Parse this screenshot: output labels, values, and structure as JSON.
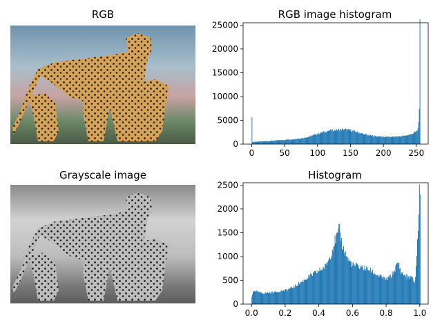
{
  "panels": {
    "rgb_title": "RGB",
    "gray_title": "Grayscale image",
    "hist_rgb_title": "RGB image histogram",
    "hist_gray_title": "Histogram"
  },
  "colors": {
    "bar": "#1f77b4",
    "axis": "#000000",
    "background": "#ffffff"
  },
  "images": {
    "rgb_subject": "cheetah-family-photo",
    "gray_subject": "cheetah-family-photo-grayscale"
  },
  "chart_data": [
    {
      "type": "bar",
      "title": "RGB image histogram",
      "xlabel": "",
      "ylabel": "",
      "xlim": [
        -13,
        268
      ],
      "ylim": [
        0,
        25500
      ],
      "xticks": [
        0,
        50,
        100,
        150,
        200,
        250
      ],
      "yticks": [
        0,
        5000,
        10000,
        15000,
        20000,
        25000
      ],
      "bin_width": 1,
      "grid": false,
      "profile": [
        [
          0,
          6200
        ],
        [
          1,
          400
        ],
        [
          3,
          500
        ],
        [
          10,
          520
        ],
        [
          20,
          600
        ],
        [
          30,
          700
        ],
        [
          40,
          800
        ],
        [
          50,
          900
        ],
        [
          60,
          1000
        ],
        [
          70,
          1150
        ],
        [
          80,
          1350
        ],
        [
          90,
          1700
        ],
        [
          100,
          2200
        ],
        [
          110,
          2600
        ],
        [
          120,
          2900
        ],
        [
          130,
          3000
        ],
        [
          140,
          3100
        ],
        [
          150,
          2900
        ],
        [
          160,
          2500
        ],
        [
          170,
          2100
        ],
        [
          180,
          1800
        ],
        [
          190,
          1650
        ],
        [
          200,
          1550
        ],
        [
          210,
          1500
        ],
        [
          220,
          1600
        ],
        [
          230,
          1700
        ],
        [
          240,
          2000
        ],
        [
          245,
          2300
        ],
        [
          250,
          2700
        ],
        [
          252,
          3200
        ],
        [
          253,
          5000
        ],
        [
          254,
          6800
        ],
        [
          255,
          24200
        ]
      ]
    },
    {
      "type": "bar",
      "title": "Histogram",
      "xlabel": "",
      "ylabel": "",
      "xlim": [
        -0.05,
        1.05
      ],
      "ylim": [
        0,
        2550
      ],
      "xticks": [
        0.0,
        0.2,
        0.4,
        0.6,
        0.8,
        1.0
      ],
      "xtick_labels": [
        "0.0",
        "0.2",
        "0.4",
        "0.6",
        "0.8",
        "1.0"
      ],
      "yticks": [
        0,
        500,
        1000,
        1500,
        2000,
        2500
      ],
      "bin_width": 0.003922,
      "grid": false,
      "profile": [
        [
          0.0,
          150
        ],
        [
          0.01,
          290
        ],
        [
          0.03,
          260
        ],
        [
          0.06,
          230
        ],
        [
          0.1,
          240
        ],
        [
          0.15,
          260
        ],
        [
          0.2,
          290
        ],
        [
          0.25,
          360
        ],
        [
          0.3,
          480
        ],
        [
          0.35,
          600
        ],
        [
          0.4,
          700
        ],
        [
          0.44,
          800
        ],
        [
          0.47,
          1050
        ],
        [
          0.49,
          1300
        ],
        [
          0.51,
          1450
        ],
        [
          0.52,
          1580
        ],
        [
          0.54,
          1200
        ],
        [
          0.57,
          950
        ],
        [
          0.6,
          820
        ],
        [
          0.65,
          780
        ],
        [
          0.7,
          720
        ],
        [
          0.75,
          600
        ],
        [
          0.8,
          520
        ],
        [
          0.83,
          600
        ],
        [
          0.86,
          800
        ],
        [
          0.87,
          880
        ],
        [
          0.89,
          650
        ],
        [
          0.92,
          580
        ],
        [
          0.95,
          560
        ],
        [
          0.97,
          450
        ],
        [
          0.98,
          1000
        ],
        [
          0.99,
          1700
        ],
        [
          0.995,
          2300
        ],
        [
          1.0,
          2480
        ]
      ]
    }
  ]
}
